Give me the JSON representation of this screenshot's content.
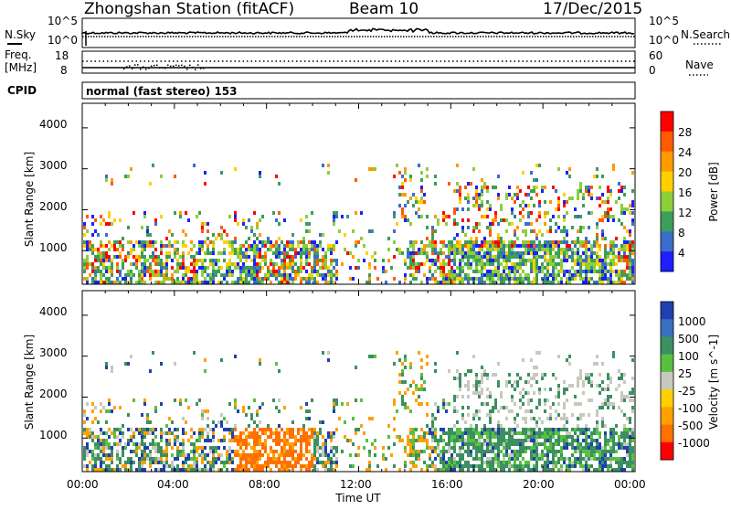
{
  "chart_data": {
    "type": "heatmap",
    "header": {
      "station": "Zhongshan Station (fitACF)",
      "beam": "Beam 10",
      "date": "17/Dec/2015"
    },
    "top_panels": {
      "nsky_label": "N.Sky",
      "nsky_ticks": [
        "10^5",
        "10^0"
      ],
      "nsearch_label": "N.Search",
      "nsearch_ticks": [
        "10^5",
        "10^0"
      ],
      "freq_label_1": "Freq.",
      "freq_label_2": "[MHz]",
      "freq_ticks": [
        "18",
        "8"
      ],
      "nave_label": "Nave",
      "nave_ticks": [
        "60",
        "0"
      ],
      "cpid_label": "CPID",
      "cpid_text": "normal (fast stereo) 153"
    },
    "x_axis": {
      "label": "Time UT",
      "ticks": [
        "00:00",
        "04:00",
        "08:00",
        "12:00",
        "16:00",
        "20:00",
        "00:00"
      ],
      "range_hours": [
        0,
        24
      ]
    },
    "power_panel": {
      "ylabel": "Slant Range [km]",
      "yticks": [
        "4000",
        "3000",
        "2000",
        "1000"
      ],
      "ylim_km": [
        180,
        4600
      ],
      "colorbar_label": "Power [dB]",
      "colorbar_ticks": [
        "28",
        "24",
        "20",
        "16",
        "12",
        "8",
        "4"
      ],
      "colorbar_colors": [
        "#ff0000",
        "#ff5a00",
        "#ff9a00",
        "#ffd000",
        "#8ccf3a",
        "#3c9e5a",
        "#3a6ec8",
        "#1e1eff"
      ]
    },
    "velocity_panel": {
      "ylabel": "Slant Range [km]",
      "yticks": [
        "4000",
        "3000",
        "2000",
        "1000"
      ],
      "ylim_km": [
        180,
        4600
      ],
      "colorbar_label": "Velocity [m s^-1]",
      "colorbar_ticks": [
        "1000",
        "500",
        "100",
        "25",
        "-25",
        "-100",
        "-500",
        "-1000"
      ],
      "colorbar_colors": [
        "#2040b0",
        "#3a70c0",
        "#3c9060",
        "#58c040",
        "#c8c8c0",
        "#ffd000",
        "#ffa000",
        "#ff7000",
        "#ff0000"
      ]
    }
  }
}
